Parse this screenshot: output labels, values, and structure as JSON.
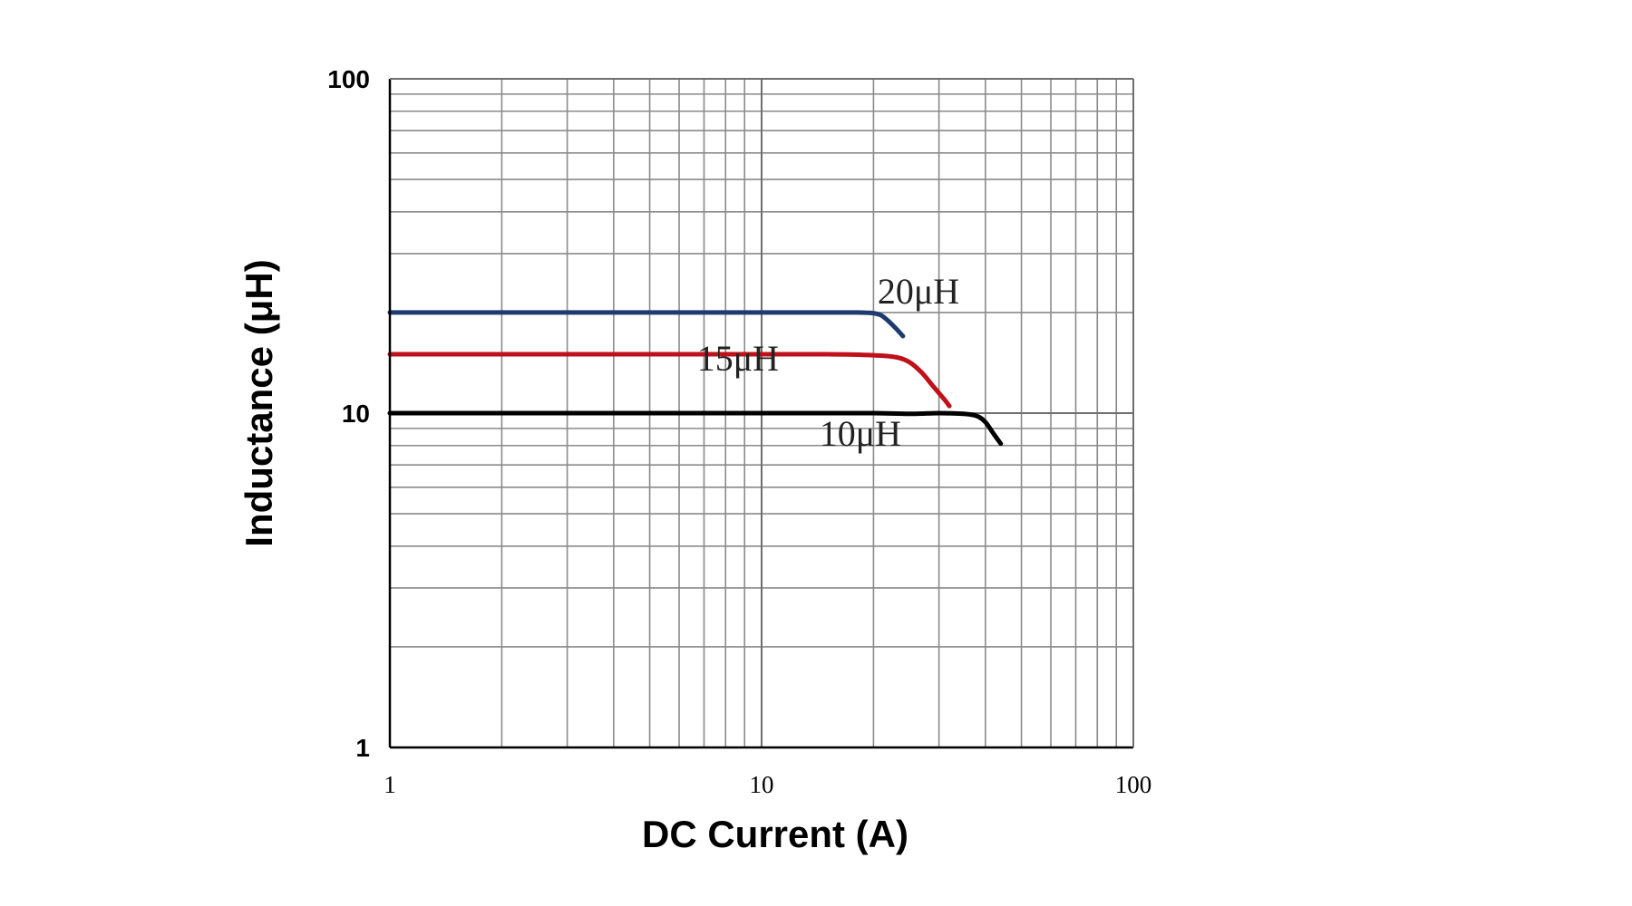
{
  "chart_data": {
    "type": "line",
    "xlabel": "DC Current (A)",
    "ylabel": "Inductance (μH)",
    "xscale": "log",
    "yscale": "log",
    "xlim": [
      1,
      100
    ],
    "ylim": [
      1,
      100
    ],
    "xticks": [
      "1",
      "10",
      "100"
    ],
    "yticks": [
      "1",
      "10",
      "100"
    ],
    "grid": true,
    "series": [
      {
        "name": "20μH",
        "color": "#1f3a6e",
        "x": [
          1,
          2,
          5,
          10,
          15,
          18,
          20,
          21,
          22,
          23,
          24
        ],
        "y": [
          20,
          20,
          20,
          20,
          20,
          20,
          19.9,
          19.6,
          18.8,
          17.9,
          17.0
        ]
      },
      {
        "name": "15μH",
        "color": "#c0101a",
        "x": [
          1,
          2,
          5,
          10,
          15,
          20,
          23,
          25,
          27,
          29,
          31,
          32
        ],
        "y": [
          15,
          15,
          15,
          15,
          15,
          14.9,
          14.7,
          14.2,
          13.2,
          12.0,
          11.0,
          10.5
        ]
      },
      {
        "name": "10μH",
        "color": "#000000",
        "x": [
          1,
          2,
          5,
          10,
          15,
          20,
          25,
          30,
          35,
          38,
          40,
          42,
          44
        ],
        "y": [
          10,
          10,
          10,
          10,
          10,
          10,
          9.95,
          10,
          9.95,
          9.8,
          9.4,
          8.7,
          8.1
        ]
      }
    ]
  }
}
